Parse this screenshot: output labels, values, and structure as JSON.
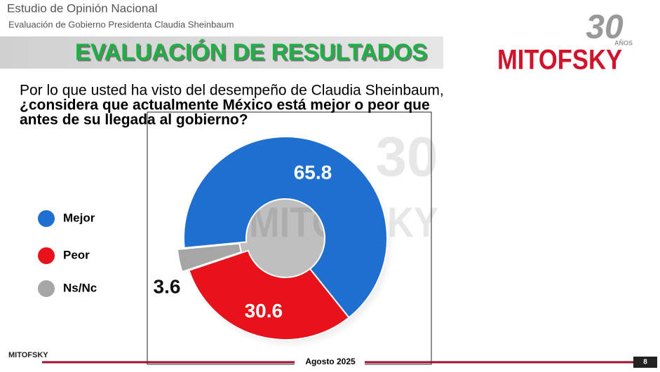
{
  "header": {
    "title": "Estudio de Opinión Nacional",
    "subtitle": "Evaluación de Gobierno Presidenta Claudia Sheinbaum",
    "banner": "EVALUACIÓN DE RESULTADOS"
  },
  "logo": {
    "years": "30",
    "years_label": "AÑOS",
    "brand": "MITOFSKY"
  },
  "question": {
    "line1": "Por lo que usted ha visto del desempeño de Claudia Sheinbaum,",
    "line2": "¿considera que actualmente México está mejor o peor que",
    "line3": "antes de su llegada al gobierno?"
  },
  "chart_data": {
    "type": "donut",
    "categories": [
      "Mejor",
      "Peor",
      "Ns/Nc"
    ],
    "values": [
      65.8,
      30.6,
      3.6
    ],
    "colors": [
      "#1f6fd0",
      "#e8121b",
      "#a6a6a6"
    ]
  },
  "footer": {
    "date": "Agosto 2025",
    "page": "8"
  }
}
